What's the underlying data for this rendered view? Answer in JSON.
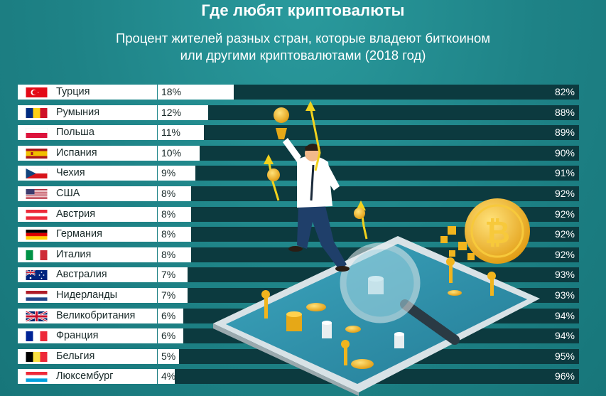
{
  "header": {
    "title": "Где любят криптовалюты",
    "subtitle_line1": "Процент жителей разных стран, которые владеют биткоином",
    "subtitle_line2": "или другими криптовалютами (2018 год)"
  },
  "chart_data": {
    "type": "bar",
    "orientation": "horizontal",
    "stacked": true,
    "title": "Где любят криптовалюты",
    "subtitle": "Процент жителей разных стран, которые владеют биткоином или другими криптовалютами (2018 год)",
    "xlim": [
      0,
      100
    ],
    "grid": false,
    "categories": [
      "Турция",
      "Румыния",
      "Польша",
      "Испания",
      "Чехия",
      "США",
      "Австрия",
      "Германия",
      "Италия",
      "Австралия",
      "Нидерланды",
      "Великобритания",
      "Франция",
      "Бельгия",
      "Люксембург"
    ],
    "flags": [
      "turkey",
      "romania",
      "poland",
      "spain",
      "czechia",
      "usa",
      "austria",
      "germany",
      "italy",
      "australia",
      "netherlands",
      "uk",
      "france",
      "belgium",
      "luxembourg"
    ],
    "series": [
      {
        "values": [
          18,
          12,
          11,
          10,
          9,
          8,
          8,
          8,
          8,
          7,
          7,
          6,
          6,
          5,
          4
        ],
        "labels": [
          "18%",
          "12%",
          "11%",
          "10%",
          "9%",
          "8%",
          "8%",
          "8%",
          "8%",
          "7%",
          "7%",
          "6%",
          "6%",
          "5%",
          "4%"
        ],
        "color": "#ffffff"
      },
      {
        "values": [
          82,
          88,
          89,
          90,
          91,
          92,
          92,
          92,
          92,
          93,
          93,
          94,
          94,
          95,
          96
        ],
        "labels": [
          "82%",
          "88%",
          "89%",
          "90%",
          "91%",
          "92%",
          "92%",
          "92%",
          "92%",
          "93%",
          "93%",
          "94%",
          "94%",
          "95%",
          "96%"
        ],
        "color": "#0c3a3f"
      }
    ]
  },
  "colors": {
    "background": "#1e8286",
    "bar_owned": "#ffffff",
    "bar_rest": "#0c3a3f",
    "coin_gold": "#f2b51d"
  }
}
